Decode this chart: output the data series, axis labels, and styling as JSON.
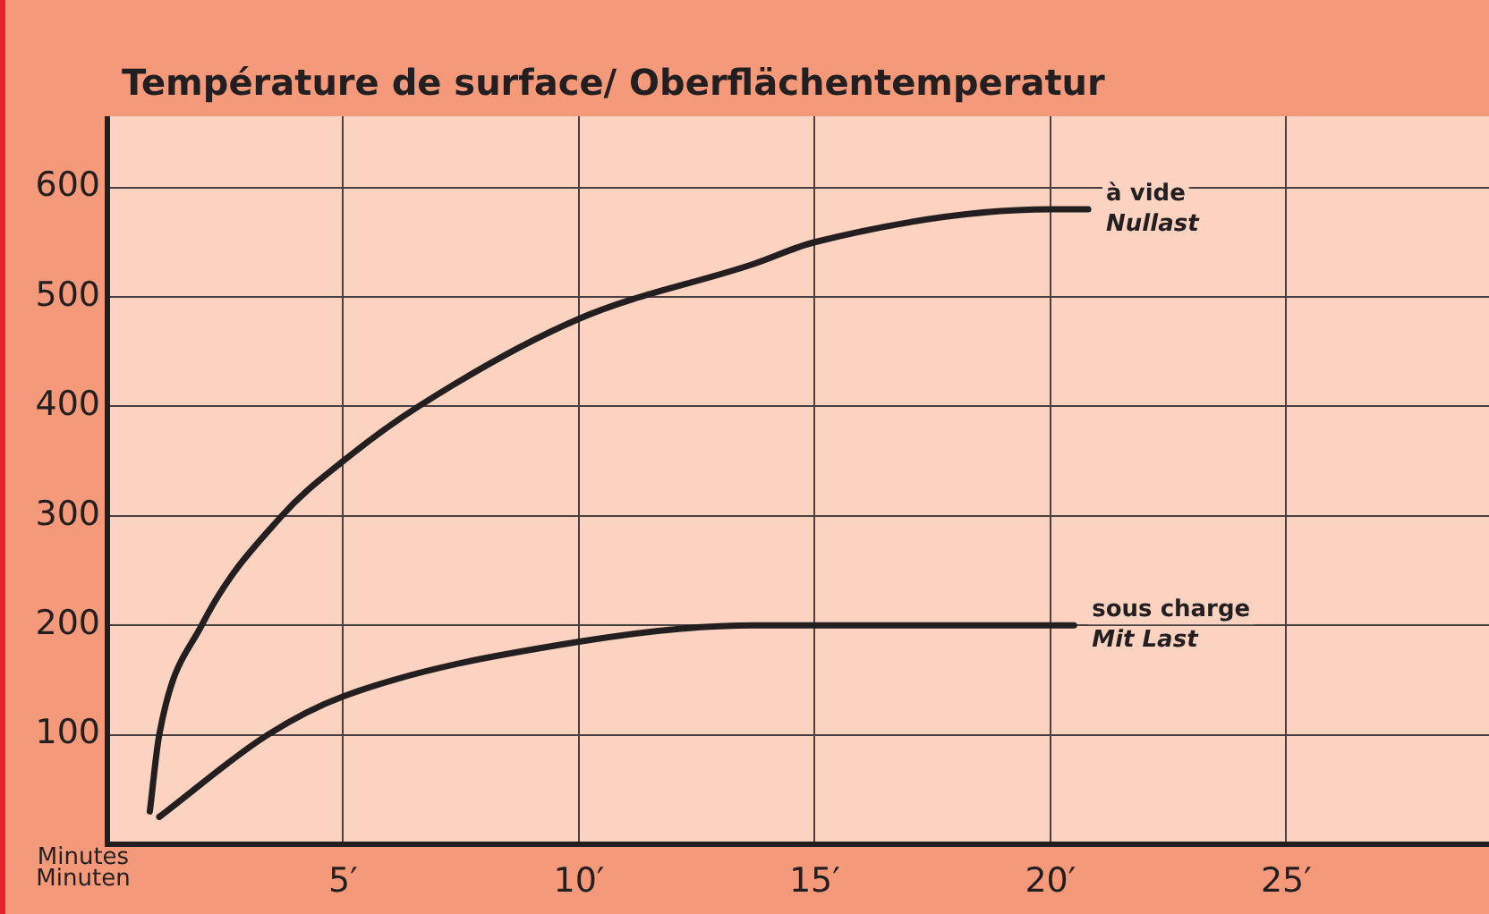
{
  "chart_data": {
    "type": "line",
    "title": "Température de surface/ Oberflächentemperatur",
    "xlabel": "Minutes Minuten",
    "xlim": [
      0,
      29.3
    ],
    "xticks": [
      {
        "value": 5,
        "label": "5′"
      },
      {
        "value": 10,
        "label": "10′"
      },
      {
        "value": 15,
        "label": "15′"
      },
      {
        "value": 20,
        "label": "20′"
      },
      {
        "value": 25,
        "label": "25′"
      }
    ],
    "ylim": [
      0,
      665
    ],
    "yticks": [
      100,
      200,
      300,
      400,
      500,
      600
    ],
    "grid": true,
    "legend": false,
    "marker": "none",
    "line_style": "solid",
    "series": [
      {
        "name": "à vide\nNullast",
        "color": "#231f20",
        "x": [
          0.9,
          1.1,
          2.0,
          3.7,
          5,
          6.6,
          10,
          13.7,
          15,
          20,
          20.8
        ],
        "values": [
          30,
          100,
          200,
          300,
          350,
          400,
          480,
          530,
          550,
          580,
          580
        ]
      },
      {
        "name": "sous charge\nMit Last",
        "color": "#231f20",
        "x": [
          1.1,
          3.4,
          5,
          10,
          13.7,
          15,
          20.5
        ],
        "values": [
          25,
          100,
          135,
          185,
          200,
          200,
          200
        ]
      }
    ]
  }
}
